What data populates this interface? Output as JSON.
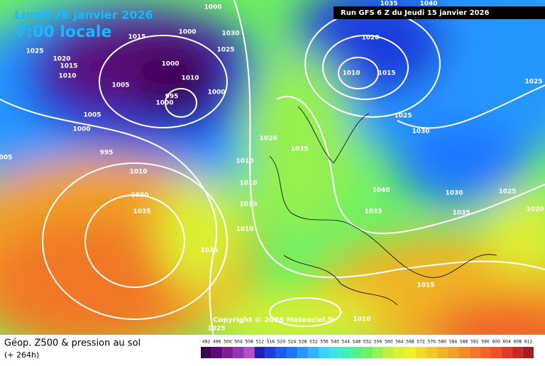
{
  "header": {
    "date": "Lundi 26 janvier 2026",
    "time": "7:00 locale",
    "run": "Run GFS 6 Z du Jeudi 15 janvier 2026"
  },
  "copyright": "Copyright © 2026 Meteociel.fr",
  "footer": {
    "title": "Géop. Z500 & pression au sol",
    "lead": "(+ 264h)"
  },
  "isobar_labels": [
    "1000",
    "1000",
    "1030",
    "1025",
    "1015",
    "1025",
    "1020",
    "1015",
    "1010",
    "1005",
    "1000",
    "1010",
    "995",
    "1000",
    "1000",
    "1005",
    "1000",
    "995",
    "005",
    "1010",
    "1030",
    "1035",
    "1025",
    "1020",
    "1010",
    "1010",
    "1010",
    "1010",
    "1035",
    "1020",
    "1010",
    "1015",
    "1025",
    "1030",
    "1040",
    "1035",
    "1030",
    "1035",
    "1025",
    "1025",
    "1020",
    "1015",
    "1010",
    "1025",
    "1035",
    "1040"
  ],
  "scale": {
    "labels": [
      492,
      496,
      500,
      504,
      508,
      512,
      516,
      520,
      524,
      528,
      532,
      536,
      540,
      544,
      548,
      552,
      556,
      560,
      564,
      568,
      572,
      576,
      580,
      584,
      588,
      592,
      596,
      600,
      604,
      608,
      612
    ],
    "colors": [
      "#3c0050",
      "#5a0a78",
      "#7a1e96",
      "#9632b4",
      "#b450c8",
      "#1e1eb4",
      "#1e3cdc",
      "#1e5af0",
      "#1e78ff",
      "#2896ff",
      "#32b4ff",
      "#3cd2ff",
      "#3ce6dc",
      "#3cf0b4",
      "#50f08c",
      "#6ef064",
      "#96f050",
      "#bef03c",
      "#dcf032",
      "#f0f028",
      "#f0dc28",
      "#f0c828",
      "#f0b428",
      "#f0a028",
      "#f08c28",
      "#f07828",
      "#f06428",
      "#f05028",
      "#dc3c28",
      "#c82828",
      "#a01e1e"
    ]
  }
}
